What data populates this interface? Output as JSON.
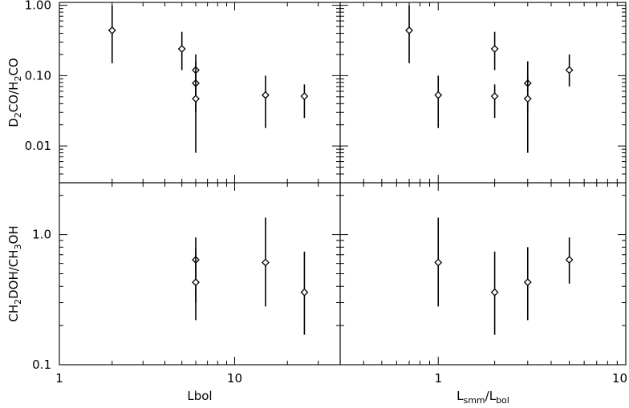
{
  "chart_data": [
    {
      "type": "scatter",
      "panel": "top-left",
      "xscale": "log",
      "yscale": "log",
      "xlim": [
        1,
        40
      ],
      "ylim": [
        0.003,
        1.1
      ],
      "xlabel": "",
      "ylabel": "D2CO/H2CO",
      "ylabel_parts": [
        [
          "D",
          ""
        ],
        [
          "2",
          "sub"
        ],
        [
          "CO/H",
          ""
        ],
        [
          "2",
          "sub"
        ],
        [
          "CO",
          ""
        ]
      ],
      "yticks": [
        {
          "v": 1.0,
          "label": "1.00"
        },
        {
          "v": 0.1,
          "label": "0.10"
        },
        {
          "v": 0.01,
          "label": "0.01"
        }
      ],
      "points": [
        {
          "x": 2.0,
          "y": 0.44,
          "lo": 0.15,
          "hi": 1.0
        },
        {
          "x": 5.0,
          "y": 0.24,
          "lo": 0.12,
          "hi": 0.42
        },
        {
          "x": 6.0,
          "y": 0.12,
          "lo": 0.05,
          "hi": 0.2
        },
        {
          "x": 6.0,
          "y": 0.078,
          "lo": 0.03,
          "hi": 0.16
        },
        {
          "x": 6.0,
          "y": 0.047,
          "lo": 0.008,
          "hi": 0.1
        },
        {
          "x": 15.0,
          "y": 0.053,
          "lo": 0.018,
          "hi": 0.1
        },
        {
          "x": 25.0,
          "y": 0.051,
          "lo": 0.025,
          "hi": 0.075
        }
      ]
    },
    {
      "type": "scatter",
      "panel": "top-right",
      "xscale": "log",
      "yscale": "log",
      "xlim": [
        0.3,
        10
      ],
      "ylim": [
        0.003,
        1.1
      ],
      "xlabel": "",
      "ylabel": "",
      "points": [
        {
          "x": 0.7,
          "y": 0.44,
          "lo": 0.15,
          "hi": 1.0
        },
        {
          "x": 1.0,
          "y": 0.053,
          "lo": 0.018,
          "hi": 0.1
        },
        {
          "x": 2.0,
          "y": 0.24,
          "lo": 0.12,
          "hi": 0.42
        },
        {
          "x": 2.0,
          "y": 0.051,
          "lo": 0.025,
          "hi": 0.075
        },
        {
          "x": 3.0,
          "y": 0.078,
          "lo": 0.03,
          "hi": 0.16
        },
        {
          "x": 3.0,
          "y": 0.047,
          "lo": 0.008,
          "hi": 0.1
        },
        {
          "x": 5.0,
          "y": 0.12,
          "lo": 0.07,
          "hi": 0.2
        }
      ]
    },
    {
      "type": "scatter",
      "panel": "bottom-left",
      "xscale": "log",
      "yscale": "log",
      "xlim": [
        1,
        40
      ],
      "ylim": [
        0.1,
        2.5
      ],
      "xlabel": "Lbol",
      "ylabel": "CH2DOH/CH3OH",
      "ylabel_parts": [
        [
          "CH",
          ""
        ],
        [
          "2",
          "sub"
        ],
        [
          "DOH/CH",
          ""
        ],
        [
          "3",
          "sub"
        ],
        [
          "OH",
          ""
        ]
      ],
      "xticks": [
        {
          "v": 1,
          "label": "1"
        },
        {
          "v": 10,
          "label": "10"
        }
      ],
      "yticks": [
        {
          "v": 1.0,
          "label": "1.0"
        },
        {
          "v": 0.1,
          "label": "0.1"
        }
      ],
      "points": [
        {
          "x": 6.0,
          "y": 0.64,
          "lo": 0.3,
          "hi": 0.95
        },
        {
          "x": 6.0,
          "y": 0.43,
          "lo": 0.22,
          "hi": 0.78
        },
        {
          "x": 15.0,
          "y": 0.61,
          "lo": 0.28,
          "hi": 1.35
        },
        {
          "x": 25.0,
          "y": 0.36,
          "lo": 0.17,
          "hi": 0.74
        }
      ]
    },
    {
      "type": "scatter",
      "panel": "bottom-right",
      "xscale": "log",
      "yscale": "log",
      "xlim": [
        0.3,
        10
      ],
      "ylim": [
        0.1,
        2.5
      ],
      "xlabel": "Lsmm/Lbol",
      "ylabel": "",
      "xlabel_parts": [
        [
          "L",
          ""
        ],
        [
          "smm",
          "sub"
        ],
        [
          "/L",
          ""
        ],
        [
          "bol",
          "sub"
        ]
      ],
      "xticks": [
        {
          "v": 1,
          "label": "1"
        },
        {
          "v": 10,
          "label": "10"
        }
      ],
      "points": [
        {
          "x": 1.0,
          "y": 0.61,
          "lo": 0.28,
          "hi": 1.35
        },
        {
          "x": 2.0,
          "y": 0.36,
          "lo": 0.17,
          "hi": 0.74
        },
        {
          "x": 3.0,
          "y": 0.43,
          "lo": 0.22,
          "hi": 0.8
        },
        {
          "x": 5.0,
          "y": 0.64,
          "lo": 0.42,
          "hi": 0.95
        }
      ]
    }
  ]
}
